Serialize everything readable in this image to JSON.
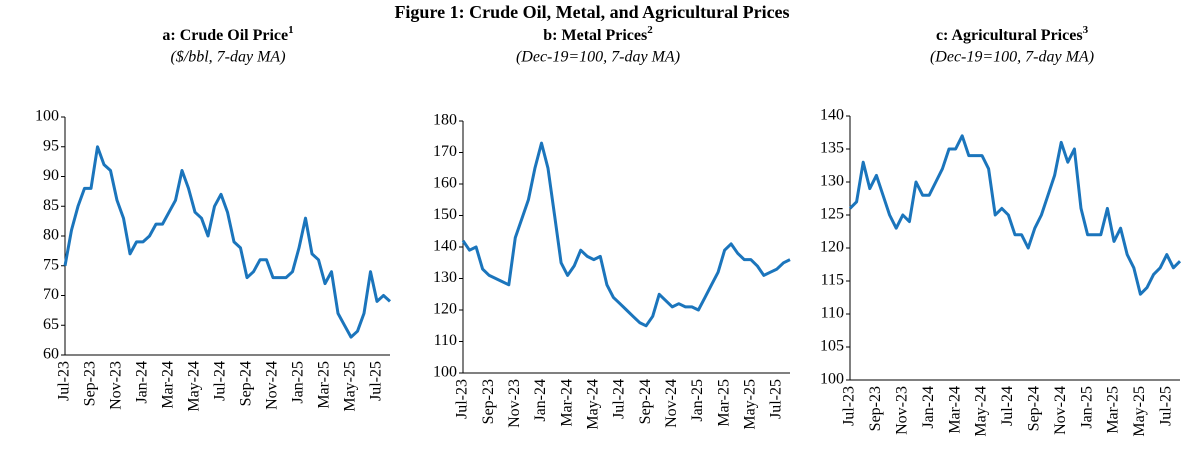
{
  "title": "Figure 1: Crude Oil, Metal, and Agricultural Prices",
  "chart_data": [
    {
      "type": "line",
      "title": "a: Crude Oil Price",
      "title_note": "1",
      "subtitle": "($/bbl, 7-day MA)",
      "categories": [
        "Jul-23",
        null,
        null,
        null,
        "Sep-23",
        null,
        null,
        null,
        "Nov-23",
        null,
        null,
        null,
        "Jan-24",
        null,
        null,
        null,
        "Mar-24",
        null,
        null,
        null,
        "May-24",
        null,
        null,
        null,
        "Jul-24",
        null,
        null,
        null,
        "Sep-24",
        null,
        null,
        null,
        "Nov-24",
        null,
        null,
        null,
        "Jan-25",
        null,
        null,
        null,
        "Mar-25",
        null,
        null,
        null,
        "May-25",
        null,
        null,
        null,
        "Jul-25",
        null,
        null
      ],
      "values": [
        75,
        81,
        85,
        88,
        88,
        95,
        92,
        91,
        86,
        83,
        77,
        79,
        79,
        80,
        82,
        82,
        84,
        86,
        91,
        88,
        84,
        83,
        80,
        85,
        87,
        84,
        79,
        78,
        73,
        74,
        76,
        76,
        73,
        73,
        73,
        74,
        78,
        83,
        77,
        76,
        72,
        74,
        67,
        65,
        63,
        64,
        67,
        74,
        69,
        70,
        69
      ],
      "color": "#1b75bc",
      "ylim": [
        60,
        100
      ],
      "yticks": [
        60,
        65,
        70,
        75,
        80,
        85,
        90,
        95,
        100
      ]
    },
    {
      "type": "line",
      "title": "b: Metal Prices",
      "title_note": "2",
      "subtitle": "(Dec-19=100, 7-day MA)",
      "categories": [
        "Jul-23",
        null,
        null,
        null,
        "Sep-23",
        null,
        null,
        null,
        "Nov-23",
        null,
        null,
        null,
        "Jan-24",
        null,
        null,
        null,
        "Mar-24",
        null,
        null,
        null,
        "May-24",
        null,
        null,
        null,
        "Jul-24",
        null,
        null,
        null,
        "Sep-24",
        null,
        null,
        null,
        "Nov-24",
        null,
        null,
        null,
        "Jan-25",
        null,
        null,
        null,
        "Mar-25",
        null,
        null,
        null,
        "May-25",
        null,
        null,
        null,
        "Jul-25",
        null,
        null
      ],
      "values": [
        142,
        139,
        140,
        133,
        131,
        130,
        129,
        128,
        143,
        149,
        155,
        165,
        173,
        165,
        150,
        135,
        131,
        134,
        139,
        137,
        136,
        137,
        128,
        124,
        122,
        120,
        118,
        116,
        115,
        118,
        125,
        123,
        121,
        122,
        121,
        121,
        120,
        124,
        128,
        132,
        139,
        141,
        138,
        136,
        136,
        134,
        131,
        132,
        133,
        135,
        136
      ],
      "color": "#1b75bc",
      "ylim": [
        100,
        180
      ],
      "yticks": [
        100,
        110,
        120,
        130,
        140,
        150,
        160,
        170,
        180
      ]
    },
    {
      "type": "line",
      "title": "c: Agricultural Prices",
      "title_note": "3",
      "subtitle": "(Dec-19=100, 7-day MA)",
      "categories": [
        "Jul-23",
        null,
        null,
        null,
        "Sep-23",
        null,
        null,
        null,
        "Nov-23",
        null,
        null,
        null,
        "Jan-24",
        null,
        null,
        null,
        "Mar-24",
        null,
        null,
        null,
        "May-24",
        null,
        null,
        null,
        "Jul-24",
        null,
        null,
        null,
        "Sep-24",
        null,
        null,
        null,
        "Nov-24",
        null,
        null,
        null,
        "Jan-25",
        null,
        null,
        null,
        "Mar-25",
        null,
        null,
        null,
        "May-25",
        null,
        null,
        null,
        "Jul-25",
        null,
        null
      ],
      "values": [
        126,
        127,
        133,
        129,
        131,
        128,
        125,
        123,
        125,
        124,
        130,
        128,
        128,
        130,
        132,
        135,
        135,
        137,
        134,
        134,
        134,
        132,
        125,
        126,
        125,
        122,
        122,
        120,
        123,
        125,
        128,
        131,
        136,
        133,
        135,
        126,
        122,
        122,
        122,
        126,
        121,
        123,
        119,
        117,
        113,
        114,
        116,
        117,
        119,
        117,
        118
      ],
      "color": "#1b75bc",
      "ylim": [
        100,
        140
      ],
      "yticks": [
        100,
        105,
        110,
        115,
        120,
        125,
        130,
        135,
        140
      ]
    }
  ]
}
